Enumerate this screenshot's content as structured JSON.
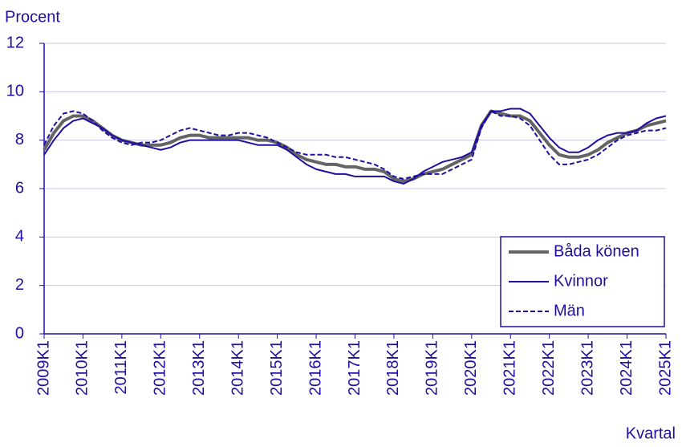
{
  "chart_data": {
    "type": "line",
    "y_label": "Procent",
    "x_label": "Kvartal",
    "categories": [
      "2009K1",
      null,
      null,
      null,
      "2010K1",
      null,
      null,
      null,
      "2011K1",
      null,
      null,
      null,
      "2012K1",
      null,
      null,
      null,
      "2013K1",
      null,
      null,
      null,
      "2014K1",
      null,
      null,
      null,
      "2015K1",
      null,
      null,
      null,
      "2016K1",
      null,
      null,
      null,
      "2017K1",
      null,
      null,
      null,
      "2018K1",
      null,
      null,
      null,
      "2019K1",
      null,
      null,
      null,
      "2020K1",
      null,
      null,
      null,
      "2021K1",
      null,
      null,
      null,
      "2022K1",
      null,
      null,
      null,
      "2023K1",
      null,
      null,
      null,
      "2024K1",
      null,
      null,
      null,
      "2025K1"
    ],
    "series": [
      {
        "name": "Båda könen",
        "color": "#646464",
        "line_width": 4,
        "dashed": false,
        "values": [
          7.6,
          8.3,
          8.8,
          9.0,
          9.0,
          8.8,
          8.5,
          8.2,
          8.0,
          7.9,
          7.8,
          7.8,
          7.8,
          7.9,
          8.1,
          8.2,
          8.2,
          8.1,
          8.1,
          8.1,
          8.1,
          8.1,
          8.0,
          8.0,
          7.9,
          7.7,
          7.4,
          7.2,
          7.1,
          7.0,
          7.0,
          6.9,
          6.9,
          6.8,
          6.8,
          6.7,
          6.4,
          6.3,
          6.4,
          6.6,
          6.7,
          6.8,
          7.0,
          7.2,
          7.4,
          8.6,
          9.2,
          9.1,
          9.0,
          9.0,
          8.8,
          8.3,
          7.8,
          7.4,
          7.3,
          7.3,
          7.4,
          7.6,
          7.9,
          8.1,
          8.3,
          8.4,
          8.6,
          8.7,
          8.8
        ]
      },
      {
        "name": "Kvinnor",
        "color": "#1e0fa0",
        "line_width": 2,
        "dashed": false,
        "values": [
          7.4,
          8.0,
          8.5,
          8.8,
          8.9,
          8.7,
          8.5,
          8.2,
          8.0,
          7.9,
          7.8,
          7.7,
          7.6,
          7.7,
          7.9,
          8.0,
          8.0,
          8.0,
          8.0,
          8.0,
          8.0,
          7.9,
          7.8,
          7.8,
          7.8,
          7.6,
          7.3,
          7.0,
          6.8,
          6.7,
          6.6,
          6.6,
          6.5,
          6.5,
          6.5,
          6.5,
          6.3,
          6.2,
          6.4,
          6.7,
          6.9,
          7.1,
          7.2,
          7.3,
          7.5,
          8.6,
          9.2,
          9.2,
          9.3,
          9.3,
          9.1,
          8.6,
          8.1,
          7.7,
          7.5,
          7.5,
          7.7,
          8.0,
          8.2,
          8.3,
          8.3,
          8.4,
          8.7,
          8.9,
          9.0
        ]
      },
      {
        "name": "Män",
        "color": "#1e0fa0",
        "line_width": 2,
        "dashed": true,
        "values": [
          7.8,
          8.6,
          9.1,
          9.2,
          9.1,
          8.8,
          8.4,
          8.1,
          7.9,
          7.8,
          7.9,
          7.9,
          8.0,
          8.2,
          8.4,
          8.5,
          8.4,
          8.3,
          8.2,
          8.2,
          8.3,
          8.3,
          8.2,
          8.1,
          7.9,
          7.7,
          7.5,
          7.4,
          7.4,
          7.4,
          7.3,
          7.3,
          7.2,
          7.1,
          7.0,
          6.8,
          6.5,
          6.4,
          6.5,
          6.6,
          6.6,
          6.6,
          6.8,
          7.0,
          7.2,
          8.5,
          9.2,
          9.0,
          9.0,
          8.9,
          8.6,
          8.0,
          7.4,
          7.0,
          7.0,
          7.1,
          7.2,
          7.4,
          7.7,
          8.0,
          8.2,
          8.3,
          8.4,
          8.4,
          8.5
        ]
      }
    ],
    "ylim": [
      0,
      12
    ],
    "yticks": [
      0,
      2,
      4,
      6,
      8,
      10,
      12
    ],
    "grid": true,
    "legend": "lower right"
  }
}
